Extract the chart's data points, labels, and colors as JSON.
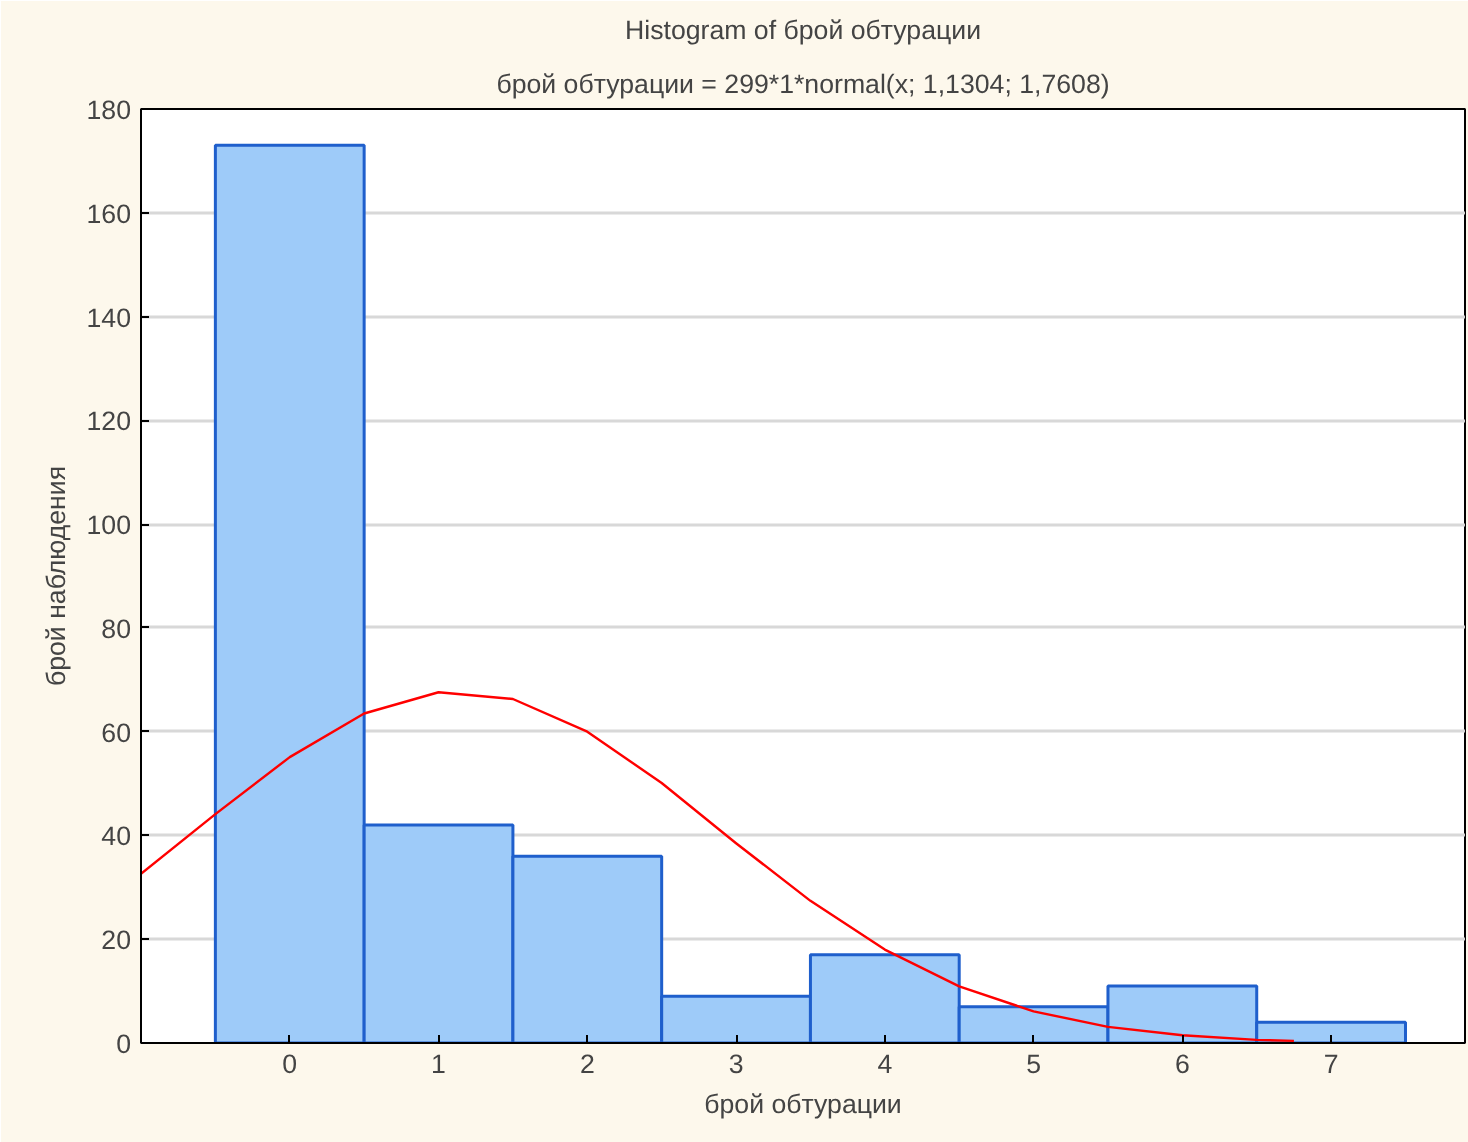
{
  "chart_data": {
    "type": "histogram",
    "title": "Histogram of брой обтурации",
    "subtitle": "брой обтурации = 299*1*normal(x; 1,1304; 1,7608)",
    "xlabel": "брой обтурации",
    "ylabel": "брой наблюдения",
    "bins": [
      -0.5,
      0.5,
      1.5,
      2.5,
      3.5,
      4.5,
      5.5,
      6.5,
      7.5
    ],
    "values": [
      173,
      42,
      36,
      9,
      17,
      7,
      11,
      4
    ],
    "color": "#9ecbf9",
    "series": [
      {
        "type": "line",
        "color": "#ff0000",
        "x": [
          -1,
          -0.5,
          0,
          0.5,
          1,
          1.5,
          2,
          2.5,
          3,
          3.5,
          4,
          4.5,
          5,
          5.5,
          6,
          6.5,
          6.75
        ],
        "values": [
          32.6,
          44.1,
          55.1,
          63.5,
          67.6,
          66.3,
          60.0,
          50.1,
          38.5,
          27.4,
          18.0,
          10.9,
          6.1,
          3.1,
          1.5,
          0.6,
          0.4
        ]
      }
    ],
    "xlim": [
      -1,
      7.9
    ],
    "xticks": [
      0,
      1,
      2,
      3,
      4,
      5,
      6,
      7
    ],
    "ylim": [
      0,
      180
    ],
    "yticks": [
      0,
      20,
      40,
      60,
      80,
      100,
      120,
      140,
      160,
      180
    ],
    "grid": "y"
  }
}
